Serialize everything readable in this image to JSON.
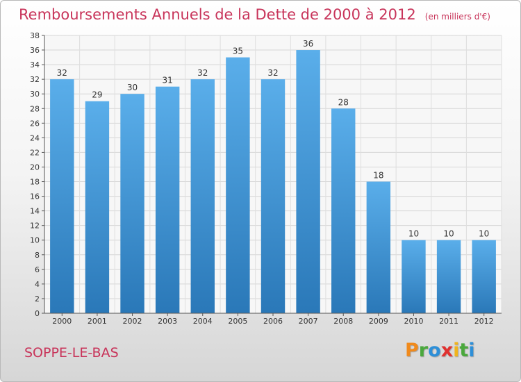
{
  "title": "Remboursements Annuels de la Dette de 2000 à 2012",
  "subtitle": "(en milliers d'€)",
  "commune": "SOPPE-LE-BAS",
  "logo": {
    "letters": [
      "P",
      "r",
      "o",
      "x",
      "i",
      "t",
      "i"
    ],
    "colors": [
      "#f08a1c",
      "#4aa83c",
      "#2d8fd8",
      "#e0312f",
      "#f0b41c",
      "#4aa83c",
      "#2d8fd8"
    ]
  },
  "colors": {
    "title": "#c8345a",
    "bar_top": "#5aaeea",
    "bar_bottom": "#2a78b8"
  },
  "chart_data": {
    "type": "bar",
    "categories": [
      "2000",
      "2001",
      "2002",
      "2003",
      "2004",
      "2005",
      "2006",
      "2007",
      "2008",
      "2009",
      "2010",
      "2011",
      "2012"
    ],
    "values": [
      32,
      29,
      30,
      31,
      32,
      35,
      32,
      36,
      28,
      18,
      10,
      10,
      10
    ],
    "ylim": [
      0,
      38
    ],
    "yticks": [
      0,
      2,
      4,
      6,
      8,
      10,
      12,
      14,
      16,
      18,
      20,
      22,
      24,
      26,
      28,
      30,
      32,
      34,
      36,
      38
    ],
    "grid": true,
    "data_labels": true
  }
}
